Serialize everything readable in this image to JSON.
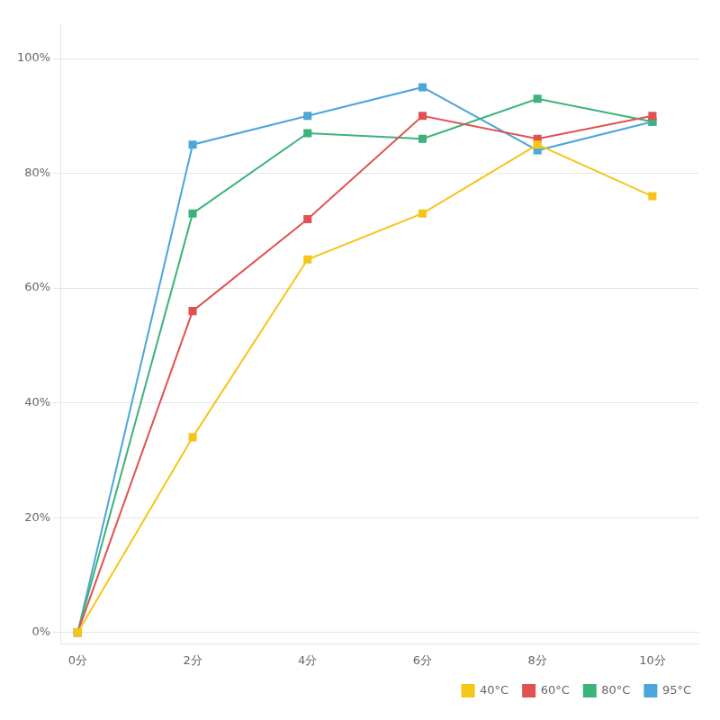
{
  "chart_data": {
    "type": "line",
    "x": [
      0,
      2,
      4,
      6,
      8,
      10
    ],
    "series": [
      {
        "name": "40°C",
        "color": "#f5c518",
        "marker": "square",
        "values": [
          0,
          34,
          65,
          73,
          85,
          76
        ]
      },
      {
        "name": "60°C",
        "color": "#e05252",
        "marker": "square",
        "values": [
          0,
          56,
          72,
          90,
          86,
          90
        ]
      },
      {
        "name": "80°C",
        "color": "#3cb37a",
        "marker": "square",
        "values": [
          0,
          73,
          87,
          86,
          93,
          89
        ]
      },
      {
        "name": "95°C",
        "color": "#4da6d9",
        "marker": "square",
        "values": [
          0,
          85,
          90,
          95,
          84,
          89
        ]
      }
    ],
    "xlim": [
      -0.3,
      10.8
    ],
    "xticks": [
      {
        "value": 0,
        "label": "0分"
      },
      {
        "value": 2,
        "label": "2分"
      },
      {
        "value": 4,
        "label": "4分"
      },
      {
        "value": 6,
        "label": "6分"
      },
      {
        "value": 8,
        "label": "8分"
      },
      {
        "value": 10,
        "label": "10分"
      }
    ],
    "ylim": [
      -2,
      106
    ],
    "yticks": [
      {
        "value": 0,
        "label": "0%"
      },
      {
        "value": 20,
        "label": "20%"
      },
      {
        "value": 40,
        "label": "40%"
      },
      {
        "value": 60,
        "label": "60%"
      },
      {
        "value": 80,
        "label": "80%"
      },
      {
        "value": 100,
        "label": "100%"
      }
    ],
    "grid": "y",
    "legend": "lower right"
  }
}
